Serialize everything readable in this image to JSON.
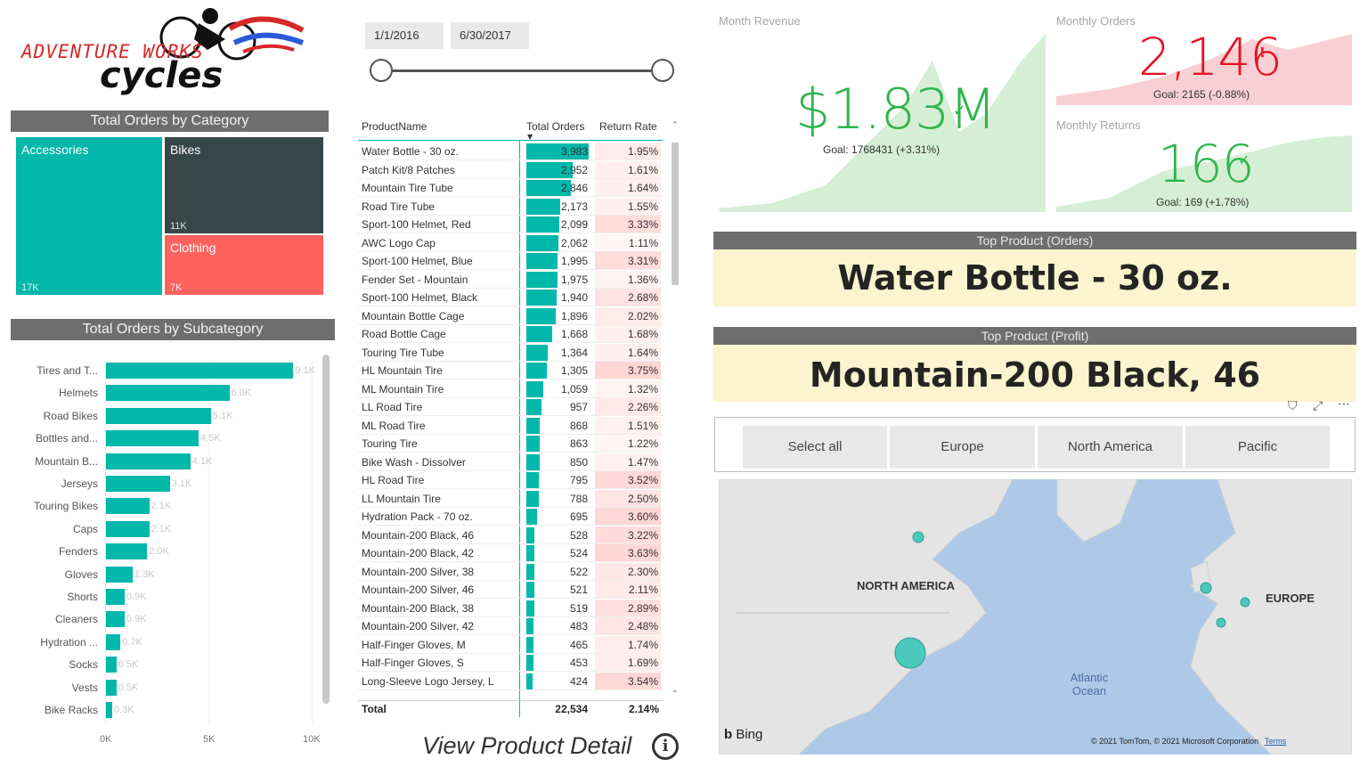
{
  "logo": {
    "line1": "ADVENTURE WORKS",
    "line2": "cycles"
  },
  "category_chart": {
    "title": "Total Orders by Category",
    "tiles": [
      {
        "label": "Accessories",
        "value": "17K",
        "color": "#01b8aa"
      },
      {
        "label": "Bikes",
        "value": "11K",
        "color": "#374649"
      },
      {
        "label": "Clothing",
        "value": "7K",
        "color": "#fd625e"
      }
    ]
  },
  "subcategory_chart": {
    "title": "Total Orders by Subcategory",
    "axis_ticks": [
      "0K",
      "5K",
      "10K"
    ]
  },
  "chart_data": {
    "type": "bar",
    "categories": [
      "Tires and T...",
      "Helmets",
      "Road Bikes",
      "Bottles and...",
      "Mountain B...",
      "Jerseys",
      "Touring Bikes",
      "Caps",
      "Fenders",
      "Gloves",
      "Shorts",
      "Cleaners",
      "Hydration ...",
      "Socks",
      "Vests",
      "Bike Racks"
    ],
    "values": [
      9100,
      6000,
      5100,
      4500,
      4100,
      3100,
      2100,
      2100,
      2000,
      1300,
      900,
      900,
      700,
      500,
      500,
      300
    ],
    "data_labels": [
      "9.1K",
      "6.0K",
      "5.1K",
      "4.5K",
      "4.1K",
      "3.1K",
      "2.1K",
      "2.1K",
      "2.0K",
      "1.3K",
      "0.9K",
      "0.9K",
      "0.7K",
      "0.5K",
      "0.5K",
      "0.3K"
    ],
    "title": "Total Orders by Subcategory",
    "xlim": [
      0,
      10000
    ],
    "orientation": "horizontal"
  },
  "date_slicer": {
    "start": "1/1/2016",
    "end": "6/30/2017"
  },
  "product_table": {
    "headers": {
      "name": "ProductName",
      "orders": "Total Orders",
      "return_rate": "Return Rate"
    },
    "rows": [
      {
        "name": "Water Bottle - 30 oz.",
        "orders": "3,983",
        "rr": "1.95%",
        "o": 3983,
        "r": 1.95
      },
      {
        "name": "Patch Kit/8 Patches",
        "orders": "2,952",
        "rr": "1.61%",
        "o": 2952,
        "r": 1.61
      },
      {
        "name": "Mountain Tire Tube",
        "orders": "2,846",
        "rr": "1.64%",
        "o": 2846,
        "r": 1.64
      },
      {
        "name": "Road Tire Tube",
        "orders": "2,173",
        "rr": "1.55%",
        "o": 2173,
        "r": 1.55
      },
      {
        "name": "Sport-100 Helmet, Red",
        "orders": "2,099",
        "rr": "3.33%",
        "o": 2099,
        "r": 3.33
      },
      {
        "name": "AWC Logo Cap",
        "orders": "2,062",
        "rr": "1.11%",
        "o": 2062,
        "r": 1.11
      },
      {
        "name": "Sport-100 Helmet, Blue",
        "orders": "1,995",
        "rr": "3.31%",
        "o": 1995,
        "r": 3.31
      },
      {
        "name": "Fender Set - Mountain",
        "orders": "1,975",
        "rr": "1.36%",
        "o": 1975,
        "r": 1.36
      },
      {
        "name": "Sport-100 Helmet, Black",
        "orders": "1,940",
        "rr": "2.68%",
        "o": 1940,
        "r": 2.68
      },
      {
        "name": "Mountain Bottle Cage",
        "orders": "1,896",
        "rr": "2.02%",
        "o": 1896,
        "r": 2.02
      },
      {
        "name": "Road Bottle Cage",
        "orders": "1,668",
        "rr": "1.68%",
        "o": 1668,
        "r": 1.68
      },
      {
        "name": "Touring Tire Tube",
        "orders": "1,364",
        "rr": "1.64%",
        "o": 1364,
        "r": 1.64
      },
      {
        "name": "HL Mountain Tire",
        "orders": "1,305",
        "rr": "3.75%",
        "o": 1305,
        "r": 3.75
      },
      {
        "name": "ML Mountain Tire",
        "orders": "1,059",
        "rr": "1.32%",
        "o": 1059,
        "r": 1.32
      },
      {
        "name": "LL Road Tire",
        "orders": "957",
        "rr": "2.26%",
        "o": 957,
        "r": 2.26
      },
      {
        "name": "ML Road Tire",
        "orders": "868",
        "rr": "1.51%",
        "o": 868,
        "r": 1.51
      },
      {
        "name": "Touring Tire",
        "orders": "863",
        "rr": "1.22%",
        "o": 863,
        "r": 1.22
      },
      {
        "name": "Bike Wash - Dissolver",
        "orders": "850",
        "rr": "1.47%",
        "o": 850,
        "r": 1.47
      },
      {
        "name": "HL Road Tire",
        "orders": "795",
        "rr": "3.52%",
        "o": 795,
        "r": 3.52
      },
      {
        "name": "LL Mountain Tire",
        "orders": "788",
        "rr": "2.50%",
        "o": 788,
        "r": 2.5
      },
      {
        "name": "Hydration Pack - 70 oz.",
        "orders": "695",
        "rr": "3.60%",
        "o": 695,
        "r": 3.6
      },
      {
        "name": "Mountain-200 Black, 46",
        "orders": "528",
        "rr": "3.22%",
        "o": 528,
        "r": 3.22
      },
      {
        "name": "Mountain-200 Black, 42",
        "orders": "524",
        "rr": "3.63%",
        "o": 524,
        "r": 3.63
      },
      {
        "name": "Mountain-200 Silver, 38",
        "orders": "522",
        "rr": "2.30%",
        "o": 522,
        "r": 2.3
      },
      {
        "name": "Mountain-200 Silver, 46",
        "orders": "521",
        "rr": "2.11%",
        "o": 521,
        "r": 2.11
      },
      {
        "name": "Mountain-200 Black, 38",
        "orders": "519",
        "rr": "2.89%",
        "o": 519,
        "r": 2.89
      },
      {
        "name": "Mountain-200 Silver, 42",
        "orders": "483",
        "rr": "2.48%",
        "o": 483,
        "r": 2.48
      },
      {
        "name": "Half-Finger Gloves, M",
        "orders": "465",
        "rr": "1.74%",
        "o": 465,
        "r": 1.74
      },
      {
        "name": "Half-Finger Gloves, S",
        "orders": "453",
        "rr": "1.69%",
        "o": 453,
        "r": 1.69
      },
      {
        "name": "Long-Sleeve Logo Jersey, L",
        "orders": "424",
        "rr": "3.54%",
        "o": 424,
        "r": 3.54
      }
    ],
    "total": {
      "label": "Total",
      "orders": "22,534",
      "rr": "2.14%"
    }
  },
  "view_detail": {
    "label": "View Product Detail"
  },
  "kpi": {
    "revenue": {
      "title": "Month Revenue",
      "value": "$1.83M",
      "goal": "Goal: 1768431 (+3.31%)"
    },
    "orders": {
      "title": "Monthly Orders",
      "value": "2,146",
      "goal": "Goal: 2165 (-0.88%)"
    },
    "returns": {
      "title": "Monthly Returns",
      "value": "166",
      "goal": "Goal: 169 (+1.78%)"
    }
  },
  "top_orders": {
    "title": "Top Product (Orders)",
    "value": "Water Bottle - 30 oz."
  },
  "top_profit": {
    "title": "Top Product (Profit)",
    "value": "Mountain-200 Black, 46"
  },
  "region_slicer": {
    "options": [
      "Select all",
      "Europe",
      "North America",
      "Pacific"
    ]
  },
  "map": {
    "labels": {
      "na": "NORTH AMERICA",
      "eu": "EUROPE",
      "ocean": "Atlantic\nOcean"
    },
    "bing": "Bing",
    "copyright": "© 2021 TomTom, © 2021 Microsoft Corporation",
    "terms": "Terms"
  },
  "colors": {
    "teal": "#01b8aa",
    "dark": "#374649",
    "red": "#fd625e",
    "kpi_green": "#2fb54a",
    "kpi_red": "#e81123"
  }
}
